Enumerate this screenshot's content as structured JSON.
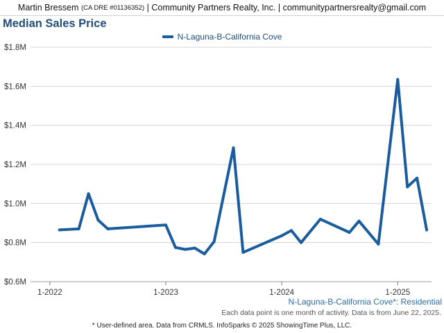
{
  "header": {
    "agent_name": "Martin Bressem",
    "license": "(CA DRE #01136352)",
    "separator": "|",
    "company": "Community Partners Realty, Inc.",
    "email": "communitypartnersrealty@gmail.com"
  },
  "footer": {
    "area_label": "N-Laguna-B-California Cove*: Residential",
    "note": "Each data point is one month of activity. Data is from June 22, 2025.",
    "credit": "* User-defined area. Data from CRMLS. InfoSparks © 2025 ShowingTime Plus, LLC."
  },
  "colors": {
    "series": "#1a5c9e",
    "title": "#1f4e79",
    "grid": "#d4d4d4"
  },
  "chart_data": {
    "type": "line",
    "title": "Median Sales Price",
    "legend_position": "top-center",
    "grid": true,
    "ylim": [
      600000,
      1800000
    ],
    "y_ticks": [
      600000,
      800000,
      1000000,
      1200000,
      1400000,
      1600000,
      1800000
    ],
    "y_tick_labels": [
      "$0.6M",
      "$0.8M",
      "$1.0M",
      "$1.2M",
      "$1.4M",
      "$1.6M",
      "$1.8M"
    ],
    "x_ticks": [
      "2022-01",
      "2023-01",
      "2024-01",
      "2025-01"
    ],
    "x_tick_labels": [
      "1-2022",
      "1-2023",
      "1-2024",
      "1-2025"
    ],
    "series": [
      {
        "name": "N-Laguna-B-California Cove",
        "points": [
          {
            "x": "2022-02",
            "y": 865000
          },
          {
            "x": "2022-04",
            "y": 870000
          },
          {
            "x": "2022-05",
            "y": 1050000
          },
          {
            "x": "2022-06",
            "y": 915000
          },
          {
            "x": "2022-07",
            "y": 870000
          },
          {
            "x": "2023-01",
            "y": 890000
          },
          {
            "x": "2023-02",
            "y": 775000
          },
          {
            "x": "2023-03",
            "y": 765000
          },
          {
            "x": "2023-04",
            "y": 772000
          },
          {
            "x": "2023-05",
            "y": 742000
          },
          {
            "x": "2023-06",
            "y": 805000
          },
          {
            "x": "2023-08",
            "y": 1285000
          },
          {
            "x": "2023-09",
            "y": 750000
          },
          {
            "x": "2024-01",
            "y": 835000
          },
          {
            "x": "2024-02",
            "y": 862000
          },
          {
            "x": "2024-03",
            "y": 800000
          },
          {
            "x": "2024-05",
            "y": 920000
          },
          {
            "x": "2024-08",
            "y": 852000
          },
          {
            "x": "2024-09",
            "y": 910000
          },
          {
            "x": "2024-11",
            "y": 792000
          },
          {
            "x": "2025-01",
            "y": 1635000
          },
          {
            "x": "2025-02",
            "y": 1085000
          },
          {
            "x": "2025-03",
            "y": 1130000
          },
          {
            "x": "2025-04",
            "y": 865000
          }
        ]
      }
    ]
  }
}
